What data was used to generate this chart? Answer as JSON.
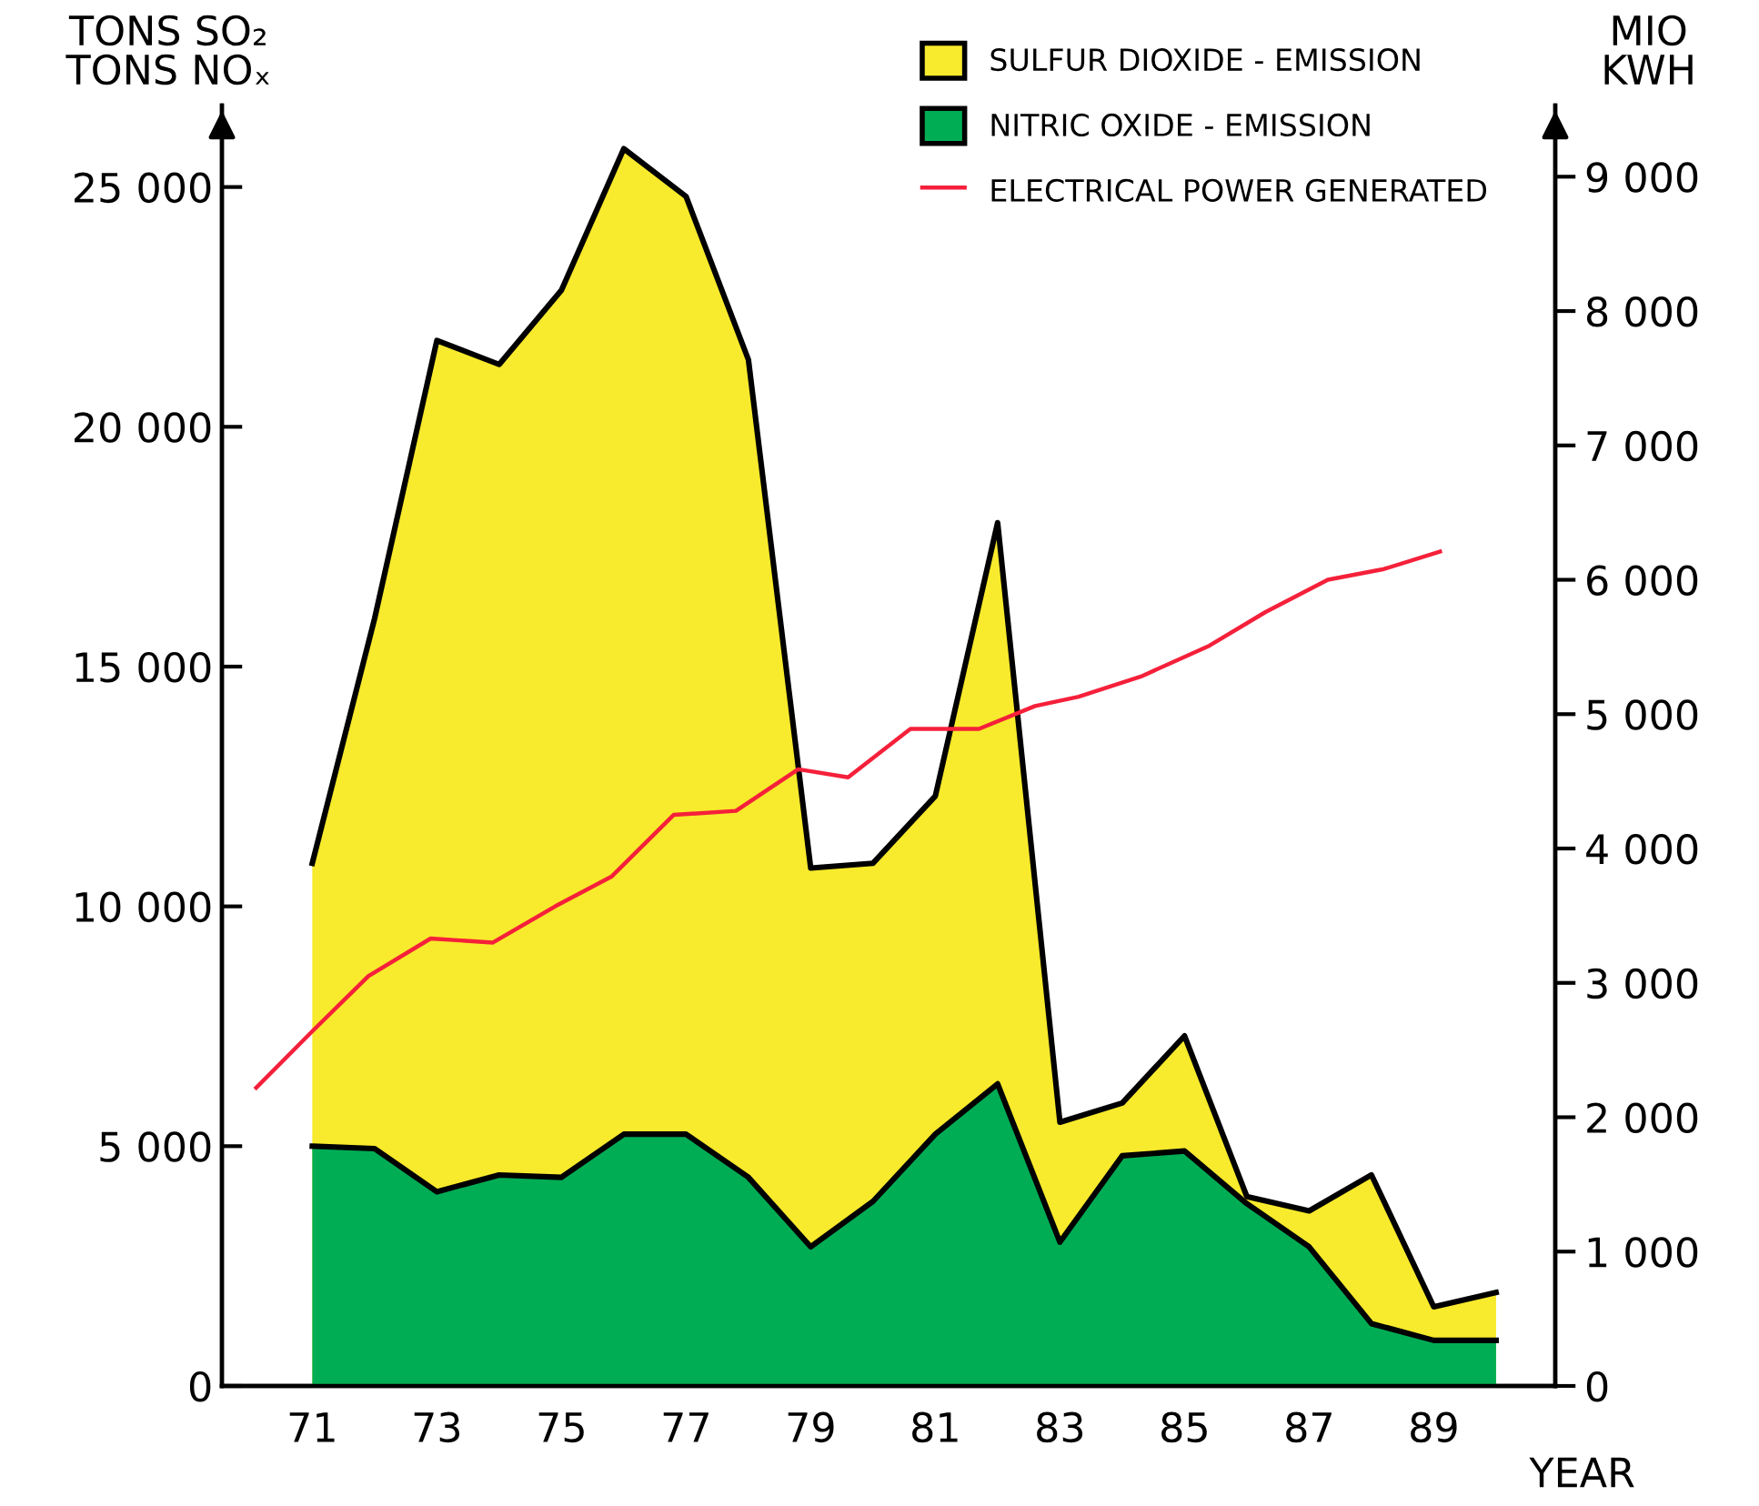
{
  "chart_data": {
    "type": "area",
    "ylabel": "TONS SO₂\nTONS NOₓ",
    "y2label": "MIO\nKWH",
    "xlabel": "YEAR",
    "x": [
      71,
      72,
      73,
      74,
      75,
      76,
      77,
      78,
      79,
      80,
      81,
      82,
      83,
      84,
      85,
      86,
      87,
      88,
      89,
      90
    ],
    "series": [
      {
        "name": "SULFUR DIOXIDE - EMISSION",
        "color": "#f8ea2c",
        "values": [
          10900,
          16000,
          21800,
          21300,
          22850,
          25800,
          24800,
          21400,
          10800,
          10900,
          12300,
          18000,
          5500,
          5900,
          7300,
          3950,
          3650,
          4400,
          1650,
          1950
        ]
      },
      {
        "name": "NITRIC OXIDE - EMISSION",
        "color": "#00ad55",
        "values": [
          5000,
          4950,
          4050,
          4400,
          4350,
          5250,
          5250,
          4350,
          2900,
          3850,
          5250,
          6300,
          3000,
          4800,
          4900,
          3800,
          2900,
          1300,
          950,
          950
        ]
      },
      {
        "name": "ELECTRICAL POWER GENERATED",
        "type": "line",
        "axis": "y2",
        "color": "#f5203a",
        "x": [
          70.1,
          71,
          71.9,
          72.9,
          73.9,
          74.9,
          75.8,
          76.8,
          77.8,
          78.8,
          79.6,
          80.6,
          81.7,
          82.6,
          83.3,
          84.3,
          85.4,
          86.3,
          87.3,
          88.2,
          89.1
        ],
        "values": [
          2220,
          2640,
          3050,
          3330,
          3300,
          3570,
          3790,
          4250,
          4280,
          4590,
          4530,
          4890,
          4890,
          5060,
          5130,
          5280,
          5510,
          5760,
          6000,
          6080,
          6210
        ]
      }
    ],
    "xlim": [
      69.55,
      90.95
    ],
    "xticks": [
      71,
      73,
      75,
      77,
      79,
      81,
      83,
      85,
      87,
      89
    ],
    "ylim": [
      0,
      26700
    ],
    "yticks": [
      0,
      {
        "value": 5000,
        "label": "5 000"
      },
      {
        "value": 10000,
        "label": "10 000"
      },
      {
        "value": 15000,
        "label": "15 000"
      },
      {
        "value": 20000,
        "label": "20 000"
      },
      {
        "value": 25000,
        "label": "25 000"
      }
    ],
    "y2lim": [
      0,
      9530
    ],
    "y2ticks": [
      0,
      {
        "value": 1000,
        "label": "1 000"
      },
      {
        "value": 2000,
        "label": "2 000"
      },
      {
        "value": 3000,
        "label": "3 000"
      },
      {
        "value": 4000,
        "label": "4 000"
      },
      {
        "value": 5000,
        "label": "5 000"
      },
      {
        "value": 6000,
        "label": "6 000"
      },
      {
        "value": 7000,
        "label": "7 000"
      },
      {
        "value": 8000,
        "label": "8 000"
      },
      {
        "value": 9000,
        "label": "9 000"
      }
    ],
    "legend": "top right",
    "grid": false,
    "marker": "none"
  }
}
